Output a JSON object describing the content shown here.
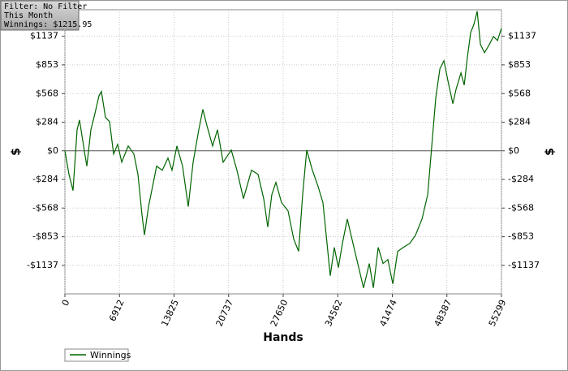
{
  "filter_box": {
    "lines": [
      "Filter: No Filter",
      "This Month",
      "Winnings: $1215.95"
    ]
  },
  "chart_data": {
    "type": "line",
    "xlabel": "Hands",
    "ylabel": "$",
    "x": [
      0,
      514,
      1028,
      1542,
      1850,
      2364,
      2776,
      3290,
      3804,
      4318,
      4626,
      5140,
      5654,
      6168,
      6682,
      7196,
      8018,
      8738,
      9252,
      9766,
      10074,
      10588,
      11102,
      11616,
      12336,
      13056,
      13570,
      14186,
      14906,
      15626,
      16242,
      16962,
      17476,
      17990,
      18710,
      19326,
      20046,
      21074,
      21794,
      22616,
      23644,
      24466,
      25186,
      25700,
      26214,
      26728,
      27448,
      28270,
      28990,
      29606,
      30120,
      30634,
      31354,
      32074,
      32690,
      33204,
      33616,
      34130,
      34644,
      35158,
      35774,
      36494,
      37214,
      37830,
      38550,
      39064,
      39681,
      40298,
      40914,
      41531,
      42148,
      42868,
      43690,
      44410,
      45232,
      45952,
      46466,
      46980,
      47494,
      48008,
      48522,
      49138,
      49550,
      50166,
      50578,
      50990,
      51402,
      51814,
      52226,
      52638,
      53154,
      53770,
      54284,
      54798,
      55299
    ],
    "series": [
      {
        "name": "Winnings",
        "color": "#006400",
        "values": [
          0,
          -233,
          -394,
          209,
          306,
          48,
          -153,
          209,
          370,
          547,
          588,
          330,
          290,
          -32,
          64,
          -113,
          48,
          -32,
          -233,
          -636,
          -837,
          -555,
          -354,
          -153,
          -193,
          -72,
          -193,
          48,
          -153,
          -555,
          -113,
          209,
          411,
          250,
          48,
          209,
          -113,
          8,
          -193,
          -475,
          -193,
          -233,
          -475,
          -757,
          -435,
          -314,
          -515,
          -596,
          -877,
          -998,
          -435,
          8,
          -193,
          -354,
          -515,
          -918,
          -1240,
          -958,
          -1159,
          -918,
          -676,
          -918,
          -1159,
          -1360,
          -1119,
          -1360,
          -958,
          -1119,
          -1079,
          -1320,
          -998,
          -958,
          -918,
          -837,
          -676,
          -435,
          48,
          531,
          813,
          894,
          692,
          467,
          612,
          773,
          652,
          934,
          1175,
          1256,
          1385,
          1055,
          974,
          1055,
          1135,
          1095,
          1216
        ]
      }
    ],
    "xlim": [
      0,
      55299
    ],
    "ylim": [
      -1420,
      1400
    ],
    "xticks": [
      0,
      6912,
      13825,
      20737,
      27650,
      34562,
      41474,
      48387,
      55299
    ],
    "yticks": [
      {
        "value": -1137,
        "label": "-$1137"
      },
      {
        "value": -853,
        "label": "-$853"
      },
      {
        "value": -568,
        "label": "-$568"
      },
      {
        "value": -284,
        "label": "-$284"
      },
      {
        "value": 0,
        "label": "$0"
      },
      {
        "value": 284,
        "label": "$284"
      },
      {
        "value": 568,
        "label": "$568"
      },
      {
        "value": 853,
        "label": "$853"
      },
      {
        "value": 1137,
        "label": "$1137"
      }
    ],
    "grid": true
  }
}
